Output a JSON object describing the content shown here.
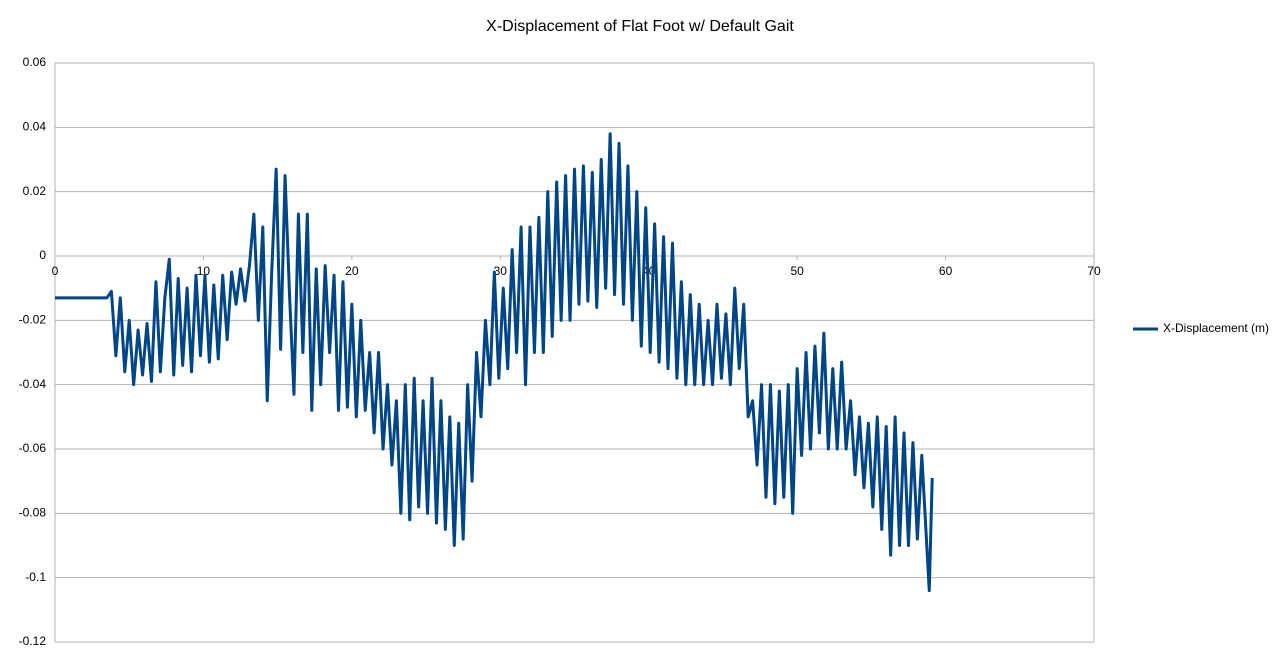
{
  "chart_data": {
    "type": "line",
    "title": "X-Displacement of Flat Foot w/ Default Gait",
    "x": [
      0,
      3.5,
      3.8,
      4.1,
      4.4,
      4.7,
      5.0,
      5.3,
      5.6,
      5.9,
      6.2,
      6.5,
      6.8,
      7.1,
      7.4,
      7.7,
      8.0,
      8.3,
      8.6,
      8.9,
      9.2,
      9.5,
      9.8,
      10.1,
      10.4,
      10.7,
      11.0,
      11.3,
      11.6,
      11.9,
      12.2,
      12.5,
      12.8,
      13.1,
      13.4,
      13.7,
      14.0,
      14.3,
      14.6,
      14.9,
      15.2,
      15.5,
      15.8,
      16.1,
      16.4,
      16.7,
      17.0,
      17.3,
      17.6,
      17.9,
      18.2,
      18.5,
      18.8,
      19.1,
      19.4,
      19.7,
      20.0,
      20.3,
      20.6,
      20.9,
      21.2,
      21.5,
      21.8,
      22.1,
      22.4,
      22.7,
      23.0,
      23.3,
      23.6,
      23.9,
      24.2,
      24.5,
      24.8,
      25.1,
      25.4,
      25.7,
      26.0,
      26.3,
      26.6,
      26.9,
      27.2,
      27.5,
      27.8,
      28.1,
      28.4,
      28.7,
      29.0,
      29.3,
      29.6,
      29.9,
      30.2,
      30.5,
      30.8,
      31.1,
      31.4,
      31.7,
      32.0,
      32.3,
      32.6,
      32.9,
      33.2,
      33.5,
      33.8,
      34.1,
      34.4,
      34.7,
      35.0,
      35.3,
      35.6,
      35.9,
      36.2,
      36.5,
      36.8,
      37.1,
      37.4,
      37.7,
      38.0,
      38.3,
      38.6,
      38.9,
      39.2,
      39.5,
      39.8,
      40.1,
      40.4,
      40.7,
      41.0,
      41.3,
      41.6,
      41.9,
      42.2,
      42.5,
      42.8,
      43.1,
      43.4,
      43.7,
      44.0,
      44.3,
      44.6,
      44.9,
      45.2,
      45.5,
      45.8,
      46.1,
      46.4,
      46.7,
      47.0,
      47.3,
      47.6,
      47.9,
      48.2,
      48.5,
      48.8,
      49.1,
      49.4,
      49.7,
      50.0,
      50.3,
      50.6,
      50.9,
      51.2,
      51.5,
      51.8,
      52.1,
      52.4,
      52.7,
      53.0,
      53.3,
      53.6,
      53.9,
      54.2,
      54.5,
      54.8,
      55.1,
      55.4,
      55.7,
      56.0,
      56.3,
      56.6,
      56.9,
      57.2,
      57.5,
      57.8,
      58.1,
      58.4,
      58.9,
      59.1
    ],
    "series": [
      {
        "name": "X-Displacement (m)",
        "color": "#004586",
        "values": [
          -0.013,
          -0.013,
          -0.011,
          -0.031,
          -0.013,
          -0.036,
          -0.02,
          -0.04,
          -0.023,
          -0.037,
          -0.021,
          -0.039,
          -0.008,
          -0.036,
          -0.013,
          -0.001,
          -0.037,
          -0.007,
          -0.034,
          -0.01,
          -0.036,
          -0.006,
          -0.031,
          -0.006,
          -0.033,
          -0.009,
          -0.032,
          -0.006,
          -0.026,
          -0.005,
          -0.015,
          -0.004,
          -0.014,
          -0.003,
          0.013,
          -0.02,
          0.009,
          -0.045,
          -0.005,
          0.027,
          -0.029,
          0.025,
          -0.012,
          -0.043,
          0.013,
          -0.03,
          0.013,
          -0.048,
          -0.004,
          -0.04,
          -0.003,
          -0.03,
          -0.006,
          -0.048,
          -0.008,
          -0.047,
          -0.015,
          -0.05,
          -0.02,
          -0.048,
          -0.03,
          -0.055,
          -0.03,
          -0.06,
          -0.04,
          -0.065,
          -0.045,
          -0.08,
          -0.04,
          -0.082,
          -0.038,
          -0.078,
          -0.045,
          -0.08,
          -0.038,
          -0.083,
          -0.045,
          -0.085,
          -0.05,
          -0.09,
          -0.052,
          -0.088,
          -0.04,
          -0.07,
          -0.03,
          -0.05,
          -0.02,
          -0.04,
          -0.005,
          -0.038,
          -0.01,
          -0.035,
          0.002,
          -0.03,
          0.009,
          -0.04,
          0.009,
          -0.03,
          0.012,
          -0.03,
          0.02,
          -0.025,
          0.023,
          -0.02,
          0.025,
          -0.02,
          0.027,
          -0.015,
          0.028,
          -0.014,
          0.026,
          -0.016,
          0.03,
          -0.01,
          0.038,
          -0.012,
          0.035,
          -0.015,
          0.028,
          -0.02,
          0.02,
          -0.028,
          0.015,
          -0.03,
          0.01,
          -0.033,
          0.006,
          -0.035,
          0.004,
          -0.038,
          -0.008,
          -0.04,
          -0.012,
          -0.04,
          -0.015,
          -0.04,
          -0.02,
          -0.04,
          -0.015,
          -0.038,
          -0.018,
          -0.04,
          -0.01,
          -0.035,
          -0.015,
          -0.05,
          -0.045,
          -0.065,
          -0.04,
          -0.075,
          -0.04,
          -0.077,
          -0.042,
          -0.075,
          -0.04,
          -0.08,
          -0.035,
          -0.062,
          -0.03,
          -0.06,
          -0.028,
          -0.055,
          -0.024,
          -0.06,
          -0.035,
          -0.06,
          -0.033,
          -0.06,
          -0.045,
          -0.068,
          -0.05,
          -0.072,
          -0.052,
          -0.078,
          -0.05,
          -0.085,
          -0.053,
          -0.093,
          -0.05,
          -0.09,
          -0.055,
          -0.09,
          -0.058,
          -0.088,
          -0.062,
          -0.104,
          -0.069
        ]
      }
    ],
    "xlim": [
      0,
      70
    ],
    "xticks": [
      0,
      10,
      20,
      30,
      40,
      50,
      60,
      70
    ],
    "ylim": [
      -0.12,
      0.06
    ],
    "yticks": [
      0.06,
      0.04,
      0.02,
      0,
      -0.02,
      -0.04,
      -0.06,
      -0.08,
      -0.1,
      -0.12
    ],
    "grid": true,
    "legend": "right"
  }
}
